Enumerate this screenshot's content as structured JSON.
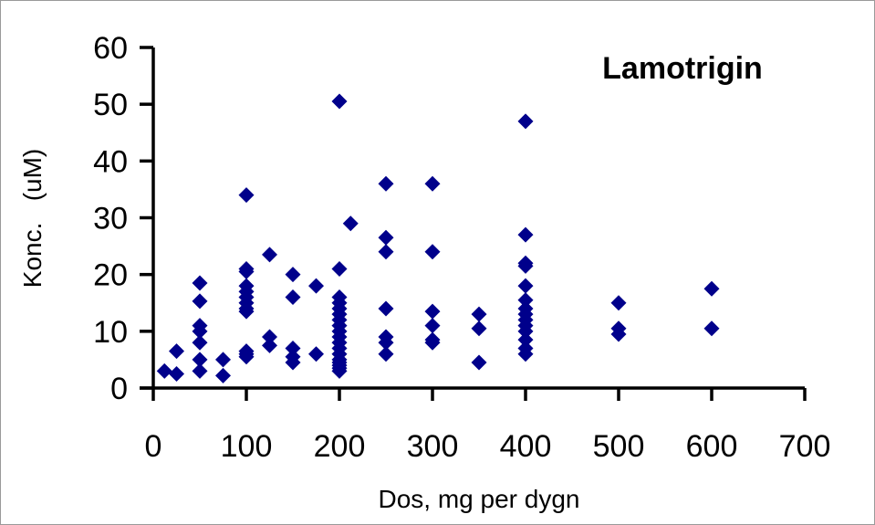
{
  "chart_data": {
    "type": "scatter",
    "title": "Lamotrigin",
    "xlabel": "Dos, mg per dygn",
    "ylabel": "Konc.   (uM)",
    "xlim": [
      0,
      700
    ],
    "ylim": [
      0,
      60
    ],
    "xticks": [
      "0",
      "100",
      "200",
      "300",
      "400",
      "500",
      "600",
      "700"
    ],
    "yticks": [
      "0",
      "10",
      "20",
      "30",
      "40",
      "50",
      "60"
    ],
    "grid": false,
    "legend": "none",
    "marker_color": "#00008B",
    "marker": "diamond",
    "points": [
      [
        12,
        3
      ],
      [
        25,
        6.5
      ],
      [
        25,
        2.5
      ],
      [
        50,
        18.5
      ],
      [
        50,
        15.3
      ],
      [
        50,
        11
      ],
      [
        50,
        10
      ],
      [
        50,
        8
      ],
      [
        50,
        5
      ],
      [
        50,
        3
      ],
      [
        75,
        5
      ],
      [
        75,
        2.2
      ],
      [
        100,
        34
      ],
      [
        100,
        21
      ],
      [
        100,
        20.5
      ],
      [
        100,
        18
      ],
      [
        100,
        17
      ],
      [
        100,
        16
      ],
      [
        100,
        15
      ],
      [
        100,
        14
      ],
      [
        100,
        13.5
      ],
      [
        100,
        6.5
      ],
      [
        100,
        6
      ],
      [
        100,
        5.5
      ],
      [
        125,
        23.5
      ],
      [
        125,
        9
      ],
      [
        125,
        7.5
      ],
      [
        150,
        20
      ],
      [
        150,
        16
      ],
      [
        150,
        7
      ],
      [
        150,
        5.5
      ],
      [
        150,
        4.5
      ],
      [
        175,
        18
      ],
      [
        175,
        6
      ],
      [
        200,
        50.5
      ],
      [
        200,
        21
      ],
      [
        200,
        16
      ],
      [
        200,
        15
      ],
      [
        200,
        14
      ],
      [
        200,
        13
      ],
      [
        200,
        12
      ],
      [
        200,
        11
      ],
      [
        200,
        10
      ],
      [
        200,
        9
      ],
      [
        200,
        8
      ],
      [
        200,
        7
      ],
      [
        200,
        6
      ],
      [
        200,
        5
      ],
      [
        200,
        4.5
      ],
      [
        200,
        4
      ],
      [
        200,
        3.5
      ],
      [
        200,
        3
      ],
      [
        212,
        29
      ],
      [
        250,
        36
      ],
      [
        250,
        26.5
      ],
      [
        250,
        24
      ],
      [
        250,
        14
      ],
      [
        250,
        9
      ],
      [
        250,
        8
      ],
      [
        250,
        6
      ],
      [
        300,
        36
      ],
      [
        300,
        24
      ],
      [
        300,
        13.5
      ],
      [
        300,
        11
      ],
      [
        300,
        8.5
      ],
      [
        300,
        8
      ],
      [
        350,
        13
      ],
      [
        350,
        10.5
      ],
      [
        350,
        4.5
      ],
      [
        400,
        47
      ],
      [
        400,
        27
      ],
      [
        400,
        22
      ],
      [
        400,
        21.5
      ],
      [
        400,
        18
      ],
      [
        400,
        15.5
      ],
      [
        400,
        14
      ],
      [
        400,
        13
      ],
      [
        400,
        12
      ],
      [
        400,
        11
      ],
      [
        400,
        10
      ],
      [
        400,
        8.5
      ],
      [
        400,
        7
      ],
      [
        400,
        6
      ],
      [
        500,
        15
      ],
      [
        500,
        10.5
      ],
      [
        500,
        9.5
      ],
      [
        600,
        17.5
      ],
      [
        600,
        10.5
      ]
    ]
  }
}
